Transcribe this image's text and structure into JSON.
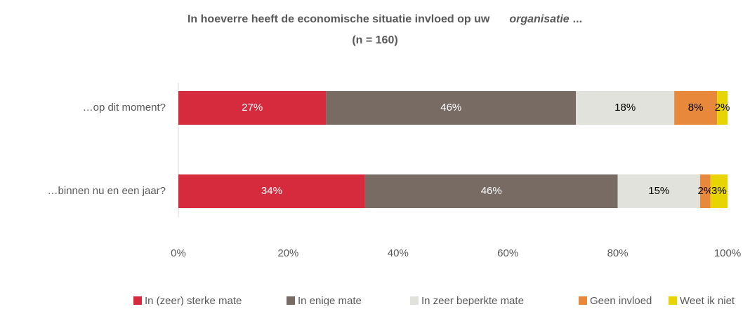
{
  "chart_data": {
    "type": "stacked_bar_horizontal",
    "title": [
      "In hoeverre heeft de economische situatie invloed op uw",
      "organisatie",
      "..."
    ],
    "subtitle": "(n = 160)",
    "categories": [
      "…op dit moment?",
      "…binnen nu en een jaar?"
    ],
    "series": [
      {
        "name": "In (zeer) sterke mate",
        "color": "#d62b3c",
        "label_color": "#ffffff",
        "values": [
          26.9,
          34.0
        ],
        "value_labels": [
          "27%",
          "34%"
        ]
      },
      {
        "name": "In enige mate",
        "color": "#776b63",
        "label_color": "#ffffff",
        "values": [
          45.5,
          46.0
        ],
        "value_labels": [
          "46%",
          "46%"
        ]
      },
      {
        "name": "In zeer beperkte mate",
        "color": "#e2e2dd",
        "label_color": "#000000",
        "values": [
          17.9,
          15.0
        ],
        "value_labels": [
          "18%",
          "15%"
        ]
      },
      {
        "name": "Geen invloed",
        "color": "#e8883a",
        "label_color": "#000000",
        "values": [
          7.8,
          1.9
        ],
        "value_labels": [
          "8%",
          "2%"
        ]
      },
      {
        "name": "Weet ik niet",
        "color": "#e8d400",
        "label_color": "#000000",
        "values": [
          1.9,
          3.1
        ],
        "value_labels": [
          "2%",
          "3%"
        ]
      }
    ],
    "xlim": [
      0,
      100
    ],
    "xticks": [
      {
        "value": 0,
        "label": "0%"
      },
      {
        "value": 20,
        "label": "20%"
      },
      {
        "value": 40,
        "label": "40%"
      },
      {
        "value": 60,
        "label": "60%"
      },
      {
        "value": 80,
        "label": "80%"
      },
      {
        "value": 100,
        "label": "100%"
      }
    ],
    "legend": "bottom"
  }
}
